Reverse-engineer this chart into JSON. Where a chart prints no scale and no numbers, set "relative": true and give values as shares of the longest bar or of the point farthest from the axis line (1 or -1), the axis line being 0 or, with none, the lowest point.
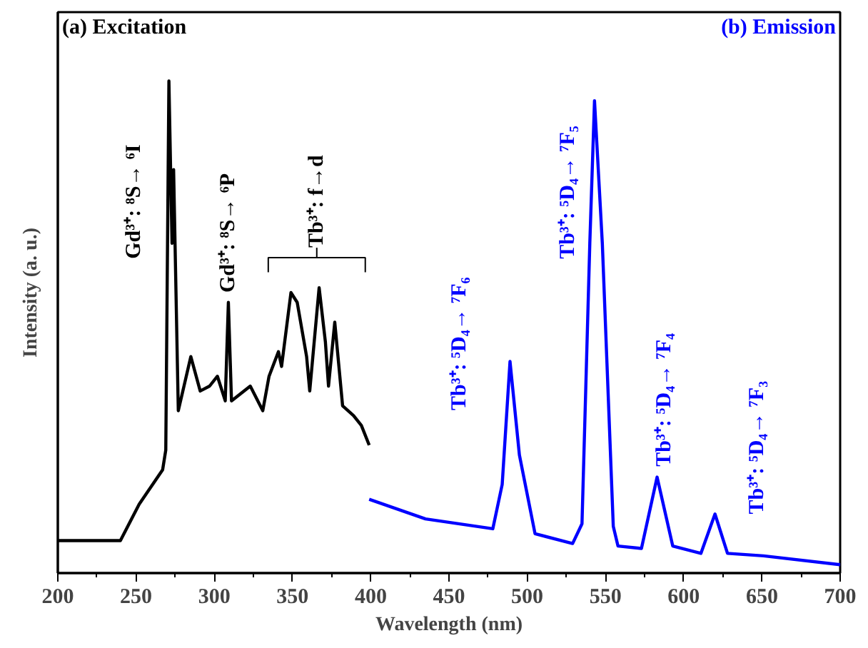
{
  "chart_data": {
    "type": "line",
    "xlabel": "Wavelength (nm)",
    "ylabel": "Intensity (a. u.)",
    "relative": true,
    "xlim": [
      200,
      700
    ],
    "xticks": [
      200,
      250,
      300,
      350,
      400,
      450,
      500,
      550,
      600,
      650,
      700
    ],
    "grid": false,
    "marker": "none",
    "line_style": "solid",
    "series": [
      {
        "color": "#000000",
        "x": [
          200,
          220,
          240,
          252,
          267,
          269,
          271,
          273,
          274,
          277,
          285,
          291,
          297,
          302,
          307,
          309,
          311,
          323,
          331,
          335,
          341,
          343,
          349,
          353,
          359,
          361,
          367,
          371,
          373,
          377,
          382,
          389,
          394,
          399
        ],
        "values": [
          0.066,
          0.066,
          0.066,
          0.14,
          0.21,
          0.25,
          1.0,
          0.67,
          0.82,
          0.33,
          0.44,
          0.37,
          0.38,
          0.4,
          0.35,
          0.55,
          0.35,
          0.38,
          0.33,
          0.4,
          0.45,
          0.42,
          0.57,
          0.55,
          0.44,
          0.37,
          0.58,
          0.47,
          0.38,
          0.51,
          0.34,
          0.32,
          0.3,
          0.26
        ]
      },
      {
        "color": "#0000ff",
        "x": [
          399,
          435,
          478,
          484,
          489,
          495,
          505,
          529,
          535,
          540,
          543,
          548,
          555,
          558,
          573,
          583,
          593,
          611,
          620,
          628,
          651,
          700
        ],
        "values": [
          0.15,
          0.11,
          0.09,
          0.18,
          0.43,
          0.24,
          0.08,
          0.06,
          0.1,
          0.67,
          0.96,
          0.67,
          0.095,
          0.055,
          0.05,
          0.195,
          0.055,
          0.04,
          0.12,
          0.04,
          0.035,
          0.017
        ]
      }
    ],
    "annotations": [
      "(a) Excitation",
      "(b) Emission",
      "Gd³⁺: ⁸S→ ⁶I",
      "Gd³⁺: ⁸S→ ⁶P",
      "Tb³⁺: f→d",
      "Tb³⁺: ⁵D₄→ ⁷F₆",
      "Tb³⁺: ⁵D₄→ ⁷F₅",
      "Tb³⁺: ⁵D₄→ ⁷F₄",
      "Tb³⁺: ⁵D₄→ ⁷F₃"
    ]
  }
}
